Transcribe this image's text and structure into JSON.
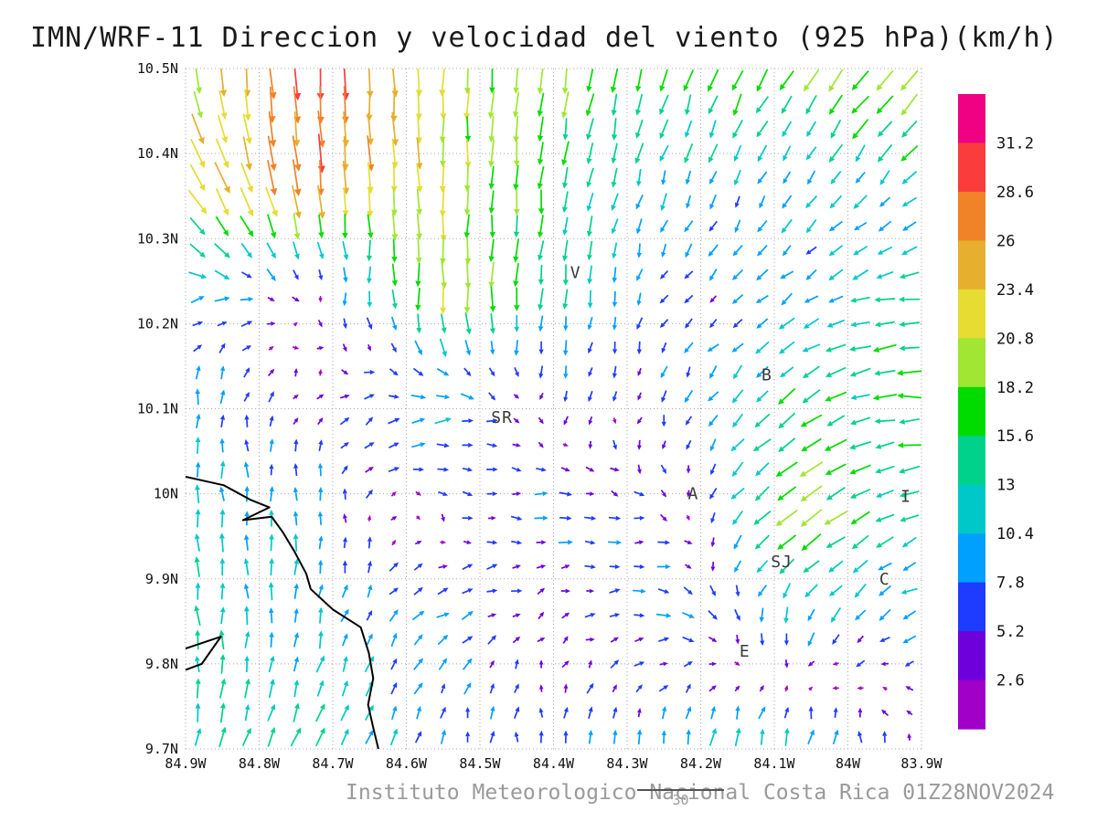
{
  "title": "IMN/WRF-11 Direccion y velocidad del viento (925 hPa)(km/h)",
  "footer": {
    "credit": "Instituto Meteorologico Nacional Costa Rica 01Z28NOV2024",
    "vector_scale_value": "30"
  },
  "chart_data": {
    "type": "vector-field",
    "variable": "Direccion y velocidad del viento",
    "level": "925 hPa",
    "units": "km/h",
    "model": "IMN/WRF-11",
    "valid_time": "01Z28NOV2024",
    "lon_min": -84.9,
    "lon_max": -83.9,
    "lat_min": 9.7,
    "lat_max": 10.5,
    "grid": {
      "dotted": true,
      "color": "#a8a8a8",
      "step_deg": 0.1
    },
    "x_ticks": [
      {
        "label": "84.9W",
        "value": -84.9
      },
      {
        "label": "84.8W",
        "value": -84.8
      },
      {
        "label": "84.7W",
        "value": -84.7
      },
      {
        "label": "84.6W",
        "value": -84.6
      },
      {
        "label": "84.5W",
        "value": -84.5
      },
      {
        "label": "84.4W",
        "value": -84.4
      },
      {
        "label": "84.3W",
        "value": -84.3
      },
      {
        "label": "84.2W",
        "value": -84.2
      },
      {
        "label": "84.1W",
        "value": -84.1
      },
      {
        "label": "84W",
        "value": -84.0
      },
      {
        "label": "83.9W",
        "value": -83.9
      }
    ],
    "y_ticks": [
      {
        "label": "10.5N",
        "value": 10.5
      },
      {
        "label": "10.4N",
        "value": 10.4
      },
      {
        "label": "10.3N",
        "value": 10.3
      },
      {
        "label": "10.2N",
        "value": 10.2
      },
      {
        "label": "10.1N",
        "value": 10.1
      },
      {
        "label": "10N",
        "value": 10.0
      },
      {
        "label": "9.9N",
        "value": 9.9
      },
      {
        "label": "9.8N",
        "value": 9.8
      },
      {
        "label": "9.7N",
        "value": 9.7
      }
    ],
    "colorbar": {
      "levels": [
        2.6,
        5.2,
        7.8,
        10.4,
        13,
        15.6,
        18.2,
        20.8,
        23.4,
        26,
        28.6,
        31.2
      ],
      "colors": [
        "#A000C8",
        "#6E00DC",
        "#1E3CFF",
        "#00A0FF",
        "#00C8C8",
        "#00D28C",
        "#00DC00",
        "#A0E632",
        "#E6DC32",
        "#E6AF2D",
        "#F08228",
        "#FA3C3C",
        "#F00082"
      ]
    },
    "stations": [
      {
        "label": "V",
        "lon": -84.37,
        "lat": 10.26
      },
      {
        "label": "B",
        "lon": -84.11,
        "lat": 10.14
      },
      {
        "label": "SR",
        "lon": -84.47,
        "lat": 10.09
      },
      {
        "label": "A",
        "lon": -84.21,
        "lat": 10.0
      },
      {
        "label": "SJ",
        "lon": -84.09,
        "lat": 9.92
      },
      {
        "label": "C",
        "lon": -83.95,
        "lat": 9.9
      },
      {
        "label": "E",
        "lon": -84.14,
        "lat": 9.815
      },
      {
        "label": "I",
        "lon": -83.921,
        "lat": 9.997
      }
    ],
    "coastlines": [
      [
        [
          -84.9,
          10.02
        ],
        [
          -84.848,
          10.01
        ],
        [
          -84.812,
          9.993
        ],
        [
          -84.786,
          9.984
        ],
        [
          -84.822,
          9.969
        ],
        [
          -84.783,
          9.973
        ],
        [
          -84.768,
          9.955
        ],
        [
          -84.752,
          9.932
        ],
        [
          -84.736,
          9.906
        ],
        [
          -84.73,
          9.888
        ],
        [
          -84.7,
          9.864
        ],
        [
          -84.662,
          9.843
        ],
        [
          -84.651,
          9.813
        ],
        [
          -84.645,
          9.783
        ],
        [
          -84.652,
          9.752
        ],
        [
          -84.645,
          9.725
        ],
        [
          -84.638,
          9.7
        ]
      ],
      [
        [
          -84.9,
          9.818
        ],
        [
          -84.852,
          9.832
        ],
        [
          -84.878,
          9.8
        ],
        [
          -84.9,
          9.793
        ]
      ]
    ],
    "wind_grid": {
      "comment": "coarse u,v field (km/h), rows top(10.5N) to bottom(9.7N), cols 84.9W to 83.9W; rendered field is bilinear interpolation",
      "nx": 7,
      "ny": 7,
      "u": [
        [
          3,
          2,
          0,
          -2,
          -5,
          -8,
          -14
        ],
        [
          12,
          3,
          0,
          -2,
          -3,
          -4,
          -8
        ],
        [
          10,
          1,
          0,
          -1,
          -3,
          -8,
          -15
        ],
        [
          0,
          1,
          12,
          -2,
          -2,
          -12,
          -16
        ],
        [
          -1,
          0,
          2,
          9,
          5,
          -16,
          -12
        ],
        [
          -1,
          2,
          7,
          2,
          8,
          -2,
          -7
        ],
        [
          2,
          6,
          1,
          0,
          2,
          3,
          -2
        ]
      ],
      "v": [
        [
          -20,
          -30,
          -22,
          -18,
          -16,
          -14,
          -16
        ],
        [
          -20,
          -26,
          -20,
          -15,
          -10,
          -8,
          -8
        ],
        [
          2,
          -2,
          -20,
          -14,
          -4,
          -6,
          -2
        ],
        [
          10,
          3,
          2,
          -3,
          -6,
          -10,
          0
        ],
        [
          12,
          9,
          -2,
          1,
          -2,
          -12,
          -5
        ],
        [
          12,
          10,
          5,
          2,
          -1,
          -10,
          -4
        ],
        [
          12,
          13,
          8,
          7,
          9,
          12,
          3
        ]
      ]
    }
  }
}
